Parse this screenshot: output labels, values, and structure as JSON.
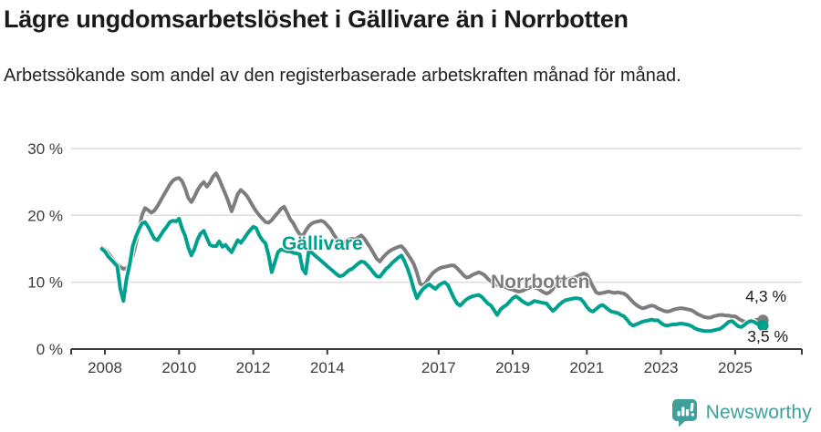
{
  "colors": {
    "gallivare": "#00a08f",
    "norrbotten": "#7d7d7d",
    "grid": "#dcdcdc",
    "axis": "#3b3b3b",
    "text": "#1a1a1a",
    "brand": "#3f9f9b"
  },
  "footer": {
    "brand": "Newsworthy",
    "logo_icon": "newsworthy-speech-bubble-bar-chart-icon"
  },
  "chart_data": {
    "type": "line",
    "title": "Lägre ungdomsarbetslöshet i Gällivare än i Norrbotten",
    "subtitle": "Arbetssökande som andel av den registerbaserade arbetskraften månad för månad.",
    "unit": "%",
    "ylim": [
      0,
      30
    ],
    "xlim": [
      2007.1,
      2026.8
    ],
    "grid": "horizontal",
    "legend_position": "inline",
    "y_ticks": [
      {
        "value": 0,
        "label": "0 %"
      },
      {
        "value": 10,
        "label": "10 %"
      },
      {
        "value": 20,
        "label": "20 %"
      },
      {
        "value": 30,
        "label": "30 %"
      }
    ],
    "x_ticks": [
      {
        "value": 2008,
        "label": "2008"
      },
      {
        "value": 2010,
        "label": "2010"
      },
      {
        "value": 2012,
        "label": "2012"
      },
      {
        "value": 2014,
        "label": "2014"
      },
      {
        "value": 2017,
        "label": "2017"
      },
      {
        "value": 2019,
        "label": "2019"
      },
      {
        "value": 2021,
        "label": "2021"
      },
      {
        "value": 2023,
        "label": "2023"
      },
      {
        "value": 2025,
        "label": "2025"
      }
    ],
    "series": [
      {
        "id": "norrbotten",
        "name": "Norrbotten",
        "color": "#7d7d7d",
        "end_label": "4,3 %",
        "last_value": 4.3,
        "x_start": 2007.9167,
        "x_step": 0.083333,
        "values": [
          15.2,
          14.9,
          14.4,
          13.8,
          13.2,
          12.7,
          12.3,
          12.0,
          12.1,
          12.7,
          13.9,
          15.7,
          17.9,
          20.0,
          21.1,
          20.8,
          20.4,
          20.7,
          21.4,
          22.2,
          23.0,
          23.8,
          24.6,
          25.2,
          25.5,
          25.6,
          25.1,
          24.0,
          22.6,
          22.0,
          22.8,
          23.8,
          24.5,
          25.0,
          24.3,
          24.9,
          25.8,
          26.3,
          25.4,
          24.3,
          23.2,
          22.0,
          20.6,
          21.8,
          23.2,
          23.8,
          23.4,
          22.9,
          22.1,
          21.3,
          20.6,
          20.0,
          19.5,
          19.0,
          18.9,
          19.3,
          19.9,
          20.4,
          21.0,
          21.3,
          20.4,
          19.4,
          18.8,
          17.9,
          17.2,
          16.9,
          17.7,
          18.4,
          18.8,
          19.0,
          19.1,
          19.2,
          19.0,
          18.5,
          18.0,
          17.2,
          16.5,
          16.0,
          15.8,
          16.1,
          16.4,
          16.5,
          16.4,
          16.7,
          17.0,
          16.5,
          15.8,
          15.1,
          14.3,
          13.5,
          13.1,
          13.7,
          14.2,
          14.6,
          14.9,
          15.1,
          15.3,
          15.4,
          14.9,
          14.2,
          13.5,
          12.7,
          11.4,
          9.8,
          9.5,
          10.0,
          10.7,
          11.3,
          11.7,
          12.0,
          12.2,
          12.3,
          12.4,
          12.5,
          12.5,
          12.1,
          11.6,
          11.1,
          10.7,
          10.8,
          11.1,
          11.3,
          11.5,
          11.3,
          11.0,
          10.5,
          10.1,
          9.9,
          9.6,
          9.4,
          9.3,
          9.2,
          9.0,
          8.9,
          8.7,
          8.6,
          8.7,
          8.9,
          9.1,
          9.3,
          9.2,
          9.1,
          8.8,
          8.5,
          8.3,
          8.5,
          9.0,
          9.7,
          10.1,
          10.3,
          10.4,
          10.5,
          10.6,
          10.7,
          10.9,
          11.1,
          11.3,
          11.1,
          10.3,
          9.3,
          8.5,
          8.3,
          8.4,
          8.5,
          8.6,
          8.5,
          8.4,
          8.5,
          8.4,
          8.3,
          8.0,
          7.5,
          7.0,
          6.6,
          6.3,
          6.1,
          6.2,
          6.4,
          6.5,
          6.4,
          6.1,
          5.9,
          5.7,
          5.6,
          5.7,
          5.9,
          6.0,
          6.1,
          6.1,
          6.0,
          5.9,
          5.8,
          5.5,
          5.2,
          5.0,
          4.8,
          4.7,
          4.7,
          4.9,
          5.0,
          5.1,
          5.1,
          5.0,
          5.0,
          4.9,
          4.9,
          4.6,
          4.3,
          4.1,
          4.0,
          4.1,
          4.2,
          4.4,
          4.4,
          4.3
        ]
      },
      {
        "id": "gallivare",
        "name": "Gällivare",
        "color": "#00a08f",
        "end_label": "3,5 %",
        "last_value": 3.5,
        "x_start": 2007.9167,
        "x_step": 0.083333,
        "values": [
          15.0,
          14.6,
          13.9,
          13.4,
          12.9,
          12.4,
          9.0,
          7.2,
          10.5,
          12.6,
          15.4,
          16.8,
          17.9,
          18.8,
          19.0,
          18.3,
          17.4,
          16.5,
          16.3,
          17.0,
          17.7,
          18.3,
          19.0,
          19.2,
          19.1,
          19.5,
          18.0,
          16.9,
          15.2,
          14.0,
          15.0,
          16.4,
          17.3,
          17.7,
          16.6,
          15.6,
          15.4,
          15.4,
          16.1,
          15.3,
          15.6,
          15.0,
          14.5,
          15.4,
          16.3,
          15.9,
          16.5,
          17.2,
          17.8,
          18.3,
          18.1,
          17.0,
          16.3,
          15.8,
          14.0,
          11.5,
          13.0,
          14.5,
          14.9,
          14.8,
          14.6,
          14.6,
          14.4,
          14.3,
          14.2,
          12.0,
          11.3,
          14.7,
          14.4,
          14.0,
          13.6,
          13.2,
          12.8,
          12.4,
          12.0,
          11.6,
          11.2,
          10.9,
          11.0,
          11.4,
          11.8,
          12.0,
          12.4,
          12.8,
          13.1,
          13.0,
          12.5,
          12.0,
          11.4,
          10.9,
          10.8,
          11.4,
          12.0,
          12.4,
          12.9,
          13.3,
          13.7,
          14.0,
          13.1,
          12.0,
          10.6,
          8.9,
          7.6,
          8.4,
          9.0,
          9.4,
          9.7,
          9.3,
          9.0,
          9.5,
          9.8,
          10.0,
          9.6,
          8.6,
          7.6,
          6.8,
          6.5,
          7.0,
          7.4,
          7.7,
          7.9,
          8.0,
          8.1,
          7.8,
          7.3,
          6.8,
          6.5,
          5.8,
          5.1,
          5.9,
          6.3,
          6.6,
          7.1,
          7.6,
          7.9,
          7.6,
          7.2,
          6.9,
          6.7,
          6.9,
          7.2,
          7.1,
          7.0,
          6.9,
          6.8,
          6.2,
          5.7,
          6.1,
          6.6,
          7.0,
          7.3,
          7.4,
          7.5,
          7.6,
          7.6,
          7.5,
          7.0,
          6.3,
          5.8,
          5.6,
          6.0,
          6.4,
          6.6,
          6.3,
          5.9,
          5.6,
          5.5,
          5.4,
          5.1,
          4.9,
          4.4,
          3.8,
          3.5,
          3.7,
          3.9,
          4.1,
          4.2,
          4.3,
          4.4,
          4.3,
          4.3,
          3.9,
          3.6,
          3.5,
          3.6,
          3.7,
          3.7,
          3.8,
          3.8,
          3.7,
          3.6,
          3.4,
          3.1,
          2.9,
          2.8,
          2.7,
          2.7,
          2.7,
          2.8,
          2.9,
          3.0,
          3.3,
          3.7,
          4.1,
          4.2,
          3.8,
          3.4,
          3.3,
          3.6,
          4.0,
          4.2,
          4.1,
          3.8,
          3.6,
          3.5
        ]
      }
    ]
  }
}
